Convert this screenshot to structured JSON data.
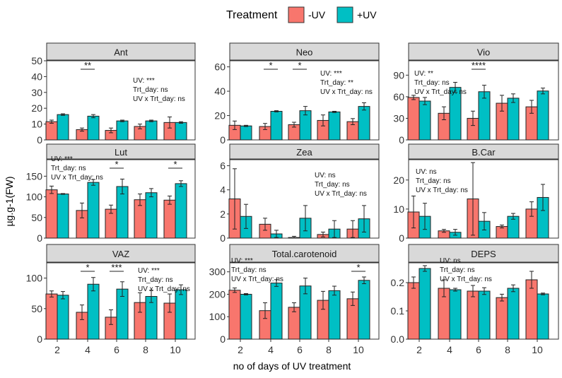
{
  "legend": {
    "title": "Treatment",
    "items": [
      {
        "label": "-UV",
        "color": "#F8766D"
      },
      {
        "label": "+UV",
        "color": "#00BFC4"
      }
    ]
  },
  "axes": {
    "ylabel": "µg.g-1(FW)",
    "xlabel": "no of days of UV treatment"
  },
  "chart_data": [
    {
      "type": "bar",
      "title": "Ant",
      "categories": [
        "2",
        "4",
        "6",
        "8",
        "10"
      ],
      "ylim": [
        0,
        50
      ],
      "yticks": [
        0,
        10,
        20,
        30,
        40,
        50
      ],
      "series": [
        {
          "name": "-UV",
          "values": [
            11.5,
            6.5,
            6,
            8.5,
            11
          ],
          "errors": [
            1,
            1,
            1.5,
            1.5,
            3.5
          ]
        },
        {
          "name": "+UV",
          "values": [
            16,
            15,
            12,
            12,
            11
          ],
          "errors": [
            0.5,
            1,
            0.5,
            0.5,
            0.5
          ]
        }
      ],
      "stats": [
        "UV: ***",
        "Trt_day: ns",
        "UV x Trt_day: ns"
      ],
      "significance": [
        {
          "category": "4",
          "label": "**"
        }
      ]
    },
    {
      "type": "bar",
      "title": "Neo",
      "categories": [
        "2",
        "4",
        "6",
        "8",
        "10"
      ],
      "ylim": [
        0,
        65
      ],
      "yticks": [
        0,
        20,
        40,
        60
      ],
      "series": [
        {
          "name": "-UV",
          "values": [
            12,
            11,
            12.5,
            16,
            15
          ],
          "errors": [
            3.5,
            2.5,
            2,
            4.5,
            2.5
          ]
        },
        {
          "name": "+UV",
          "values": [
            11.5,
            23.5,
            24,
            23,
            27.5
          ],
          "errors": [
            0.5,
            0.5,
            3.5,
            0.5,
            3
          ]
        }
      ],
      "stats": [
        "UV: ***",
        "Trt_day: **",
        "UV x Trt_day: ns"
      ],
      "significance": [
        {
          "category": "4",
          "label": "*"
        },
        {
          "category": "6",
          "label": "*"
        }
      ]
    },
    {
      "type": "bar",
      "title": "Vio",
      "categories": [
        "2",
        "4",
        "6",
        "8",
        "10"
      ],
      "ylim": [
        0,
        110
      ],
      "yticks": [
        0,
        30,
        60,
        90
      ],
      "series": [
        {
          "name": "-UV",
          "values": [
            59,
            37,
            30,
            51,
            46
          ],
          "errors": [
            3,
            9,
            10,
            11,
            9
          ]
        },
        {
          "name": "+UV",
          "values": [
            54,
            73,
            67,
            58,
            68
          ],
          "errors": [
            5,
            7,
            9,
            6,
            4
          ]
        }
      ],
      "stats": [
        "UV: **",
        "Trt_day: ns",
        "UV x Trt_day: ns"
      ],
      "significance": [
        {
          "category": "6",
          "label": "****"
        }
      ]
    },
    {
      "type": "bar",
      "title": "Lut",
      "categories": [
        "2",
        "4",
        "6",
        "8",
        "10"
      ],
      "ylim": [
        0,
        190
      ],
      "yticks": [
        0,
        50,
        100,
        150
      ],
      "series": [
        {
          "name": "-UV",
          "values": [
            117,
            67,
            70,
            93,
            92
          ],
          "errors": [
            9,
            18,
            10,
            14,
            10
          ]
        },
        {
          "name": "+UV",
          "values": [
            107,
            135,
            125,
            110,
            132
          ],
          "errors": [
            1,
            7,
            18,
            10,
            7
          ]
        }
      ],
      "stats": [
        "UV: ***",
        "Trt_day: ns",
        "UV x Trt_day: ns"
      ],
      "significance": [
        {
          "category": "6",
          "label": "*"
        },
        {
          "category": "10",
          "label": "*"
        }
      ]
    },
    {
      "type": "bar",
      "title": "Zea",
      "categories": [
        "2",
        "4",
        "6",
        "8",
        "10"
      ],
      "ylim": [
        0,
        6.5
      ],
      "yticks": [
        0,
        2,
        4,
        6
      ],
      "series": [
        {
          "name": "-UV",
          "values": [
            3.25,
            1.15,
            0.05,
            0.3,
            0.75
          ],
          "errors": [
            2.5,
            0.5,
            0.1,
            0.2,
            0.7
          ]
        },
        {
          "name": "+UV",
          "values": [
            1.8,
            0.35,
            1.65,
            0.75,
            1.6
          ],
          "errors": [
            1.0,
            0.3,
            1.05,
            0.7,
            1.1
          ]
        }
      ],
      "stats": [
        "UV: ns",
        "Trt_day: ns",
        "UV x Trt_day: ns"
      ],
      "significance": []
    },
    {
      "type": "bar",
      "title": "B.Car",
      "categories": [
        "2",
        "4",
        "6",
        "8",
        "10"
      ],
      "ylim": [
        0,
        27
      ],
      "yticks": [
        0,
        10,
        20
      ],
      "series": [
        {
          "name": "-UV",
          "values": [
            9,
            2.5,
            13.5,
            4,
            10
          ],
          "errors": [
            5.5,
            0.5,
            12.5,
            0.5,
            2.5
          ]
        },
        {
          "name": "+UV",
          "values": [
            7.5,
            2,
            5.8,
            7.5,
            14
          ],
          "errors": [
            4.5,
            1.0,
            3.0,
            1.0,
            4.5
          ]
        }
      ],
      "stats": [
        "UV: ns",
        "Trt_day: ns",
        "UV x Trt_day: ns"
      ],
      "significance": []
    },
    {
      "type": "bar",
      "title": "VAZ",
      "categories": [
        "2",
        "4",
        "6",
        "8",
        "10"
      ],
      "ylim": [
        0,
        125
      ],
      "yticks": [
        0,
        50,
        100
      ],
      "series": [
        {
          "name": "-UV",
          "values": [
            74,
            44,
            36,
            60,
            59
          ],
          "errors": [
            5,
            12,
            12,
            16,
            15
          ]
        },
        {
          "name": "+UV",
          "values": [
            72,
            90,
            82,
            70,
            81
          ],
          "errors": [
            6,
            11,
            12,
            10,
            8
          ]
        }
      ],
      "stats": [
        "UV: ***",
        "Trt_day: ns",
        "UV x Trt_day: ns"
      ],
      "significance": [
        {
          "category": "4",
          "label": "*"
        },
        {
          "category": "6",
          "label": "***"
        }
      ]
    },
    {
      "type": "bar",
      "title": "Total.carotenoid",
      "categories": [
        "2",
        "4",
        "6",
        "8",
        "10"
      ],
      "ylim": [
        0,
        340
      ],
      "yticks": [
        0,
        100,
        200,
        300
      ],
      "series": [
        {
          "name": "-UV",
          "values": [
            218,
            127,
            142,
            173,
            180
          ],
          "errors": [
            10,
            35,
            20,
            40,
            30
          ]
        },
        {
          "name": "+UV",
          "values": [
            200,
            250,
            237,
            216,
            262
          ],
          "errors": [
            3,
            15,
            35,
            20,
            15
          ]
        }
      ],
      "stats": [
        "UV: ***",
        "Trt_day: ns",
        "UV x Trt_day: ns"
      ],
      "significance": [
        {
          "category": "10",
          "label": "*"
        }
      ]
    },
    {
      "type": "bar",
      "title": "DEPS",
      "categories": [
        "2",
        "4",
        "6",
        "8",
        "10"
      ],
      "ylim": [
        0,
        0.27
      ],
      "yticks": [
        0,
        0.1,
        0.2
      ],
      "ytickLabels": [
        "0.0",
        "0.1",
        "0.2"
      ],
      "series": [
        {
          "name": "-UV",
          "values": [
            0.2,
            0.18,
            0.17,
            0.147,
            0.21
          ],
          "errors": [
            0.02,
            0.03,
            0.02,
            0.012,
            0.03
          ]
        },
        {
          "name": "+UV",
          "values": [
            0.25,
            0.175,
            0.17,
            0.18,
            0.16
          ],
          "errors": [
            0.01,
            0.005,
            0.012,
            0.012,
            0.003
          ]
        }
      ],
      "stats": [
        "UV: ns",
        "Trt_day: ns",
        "UV x Trt_day: ns"
      ],
      "significance": []
    }
  ]
}
